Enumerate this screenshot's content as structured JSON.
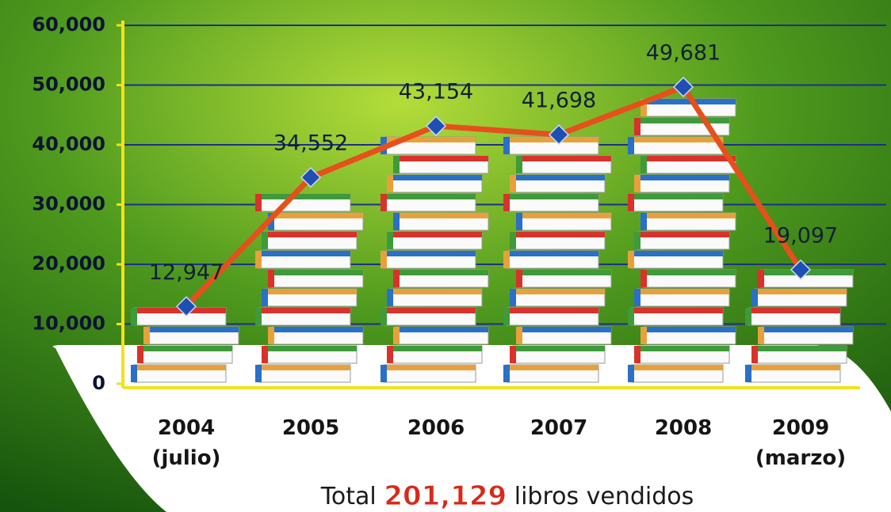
{
  "chart_data": {
    "type": "line",
    "categories": [
      "2004\n(julio)",
      "2005",
      "2006",
      "2007",
      "2008",
      "2009\n(marzo)"
    ],
    "values": [
      12947,
      34552,
      43154,
      41698,
      49681,
      19097
    ],
    "value_labels": [
      "12,947",
      "34,552",
      "43,154",
      "41,698",
      "49,681",
      "19,097"
    ],
    "color": "#e5501c",
    "marker_color": "#1f4fb0",
    "ylim": [
      0,
      60000
    ],
    "yticks": [
      0,
      {
        "value": 10000,
        "label": "10,000"
      },
      {
        "value": 20000,
        "label": "20,000"
      },
      {
        "value": 30000,
        "label": "30,000"
      },
      {
        "value": 40000,
        "label": "40,000"
      },
      {
        "value": 50000,
        "label": "50,000"
      },
      {
        "value": 60000,
        "label": "60,000"
      }
    ],
    "grid": true,
    "footer": {
      "lead": "Total",
      "total": "201,129",
      "tail": "libros vendidos"
    }
  }
}
